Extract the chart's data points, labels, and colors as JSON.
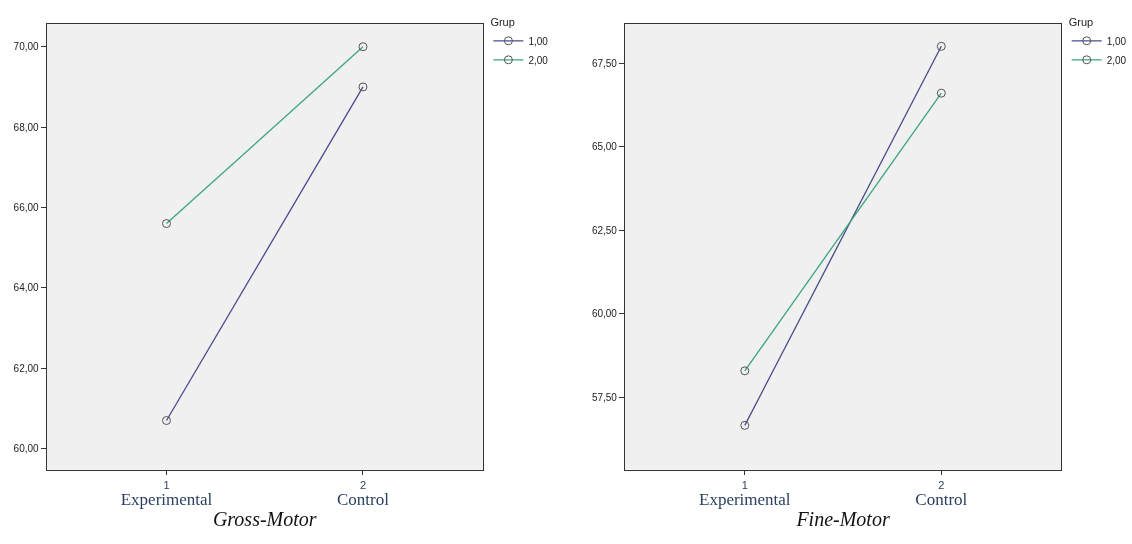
{
  "chart_data": [
    {
      "type": "line",
      "xlabel": "Gross-Motor",
      "legend_title": "Grup",
      "categories": [
        "1\nExperimental",
        "2\nControl"
      ],
      "ylim": [
        59.48,
        70.56
      ],
      "yticks": [
        {
          "value": 60,
          "label": "60,00"
        },
        {
          "value": 62,
          "label": "62,00"
        },
        {
          "value": 64,
          "label": "64,00"
        },
        {
          "value": 66,
          "label": "66,00"
        },
        {
          "value": 68,
          "label": "68,00"
        },
        {
          "value": 70,
          "label": "70,00"
        }
      ],
      "grid": false,
      "legend": "top right",
      "marker": "circle",
      "line_style": "solid",
      "series": [
        {
          "name": "1,00",
          "color": "#4a4a8c",
          "values": [
            60.7,
            69.0
          ]
        },
        {
          "name": "2,00",
          "color": "#3aa57e",
          "values": [
            65.6,
            70.0
          ]
        }
      ]
    },
    {
      "type": "line",
      "xlabel": "Fine-Motor",
      "legend_title": "Grup",
      "categories": [
        "1\nExperimental",
        "2\nControl"
      ],
      "ylim": [
        55.35,
        68.66
      ],
      "yticks": [
        {
          "value": 57.5,
          "label": "57,50"
        },
        {
          "value": 60,
          "label": "60,00"
        },
        {
          "value": 62.5,
          "label": "62,50"
        },
        {
          "value": 65,
          "label": "65,00"
        },
        {
          "value": 67.5,
          "label": "67,50"
        }
      ],
      "grid": false,
      "legend": "top right",
      "marker": "circle",
      "line_style": "solid",
      "series": [
        {
          "name": "1,00",
          "color": "#4a4a8c",
          "values": [
            56.67,
            68.0
          ]
        },
        {
          "name": "2,00",
          "color": "#3aa57e",
          "values": [
            58.3,
            66.6
          ]
        }
      ]
    }
  ]
}
